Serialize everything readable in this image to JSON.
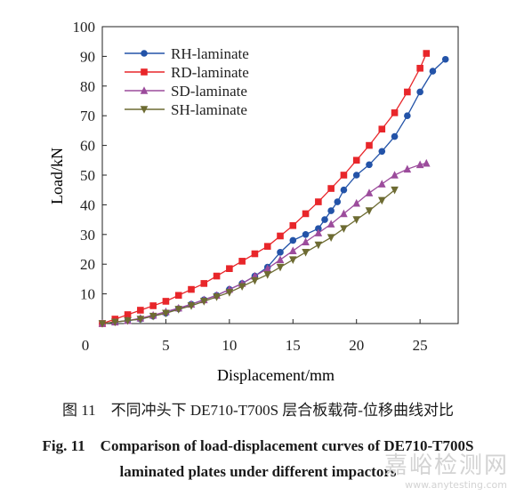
{
  "chart_data": {
    "type": "line",
    "xlabel": "Displacement/mm",
    "ylabel": "Load/kN",
    "xlim": [
      0,
      28
    ],
    "ylim": [
      0,
      100
    ],
    "x_ticks": [
      "5",
      "10",
      "15",
      "20",
      "25"
    ],
    "y_ticks": [
      "10",
      "20",
      "30",
      "40",
      "50",
      "60",
      "70",
      "80",
      "90",
      "100"
    ],
    "origin_label": "0",
    "grid": false,
    "legend_position": "top-left",
    "series": [
      {
        "name": "RH-laminate",
        "color": "#2353a8",
        "marker": "circle",
        "x": [
          0,
          1,
          2,
          3,
          4,
          5,
          6,
          7,
          8,
          9,
          10,
          11,
          12,
          13,
          14,
          15,
          16,
          17,
          17.5,
          18,
          18.5,
          19,
          20,
          21,
          22,
          23,
          24,
          25,
          26,
          27
        ],
        "y": [
          0,
          0.5,
          1,
          1.5,
          2.5,
          3.5,
          5,
          6.5,
          8,
          9.5,
          11.5,
          13.5,
          16,
          19,
          24,
          28,
          30,
          32,
          35,
          38,
          41,
          45,
          50,
          53.5,
          58,
          63,
          70,
          78,
          85,
          89
        ]
      },
      {
        "name": "RD-laminate",
        "color": "#e8262a",
        "marker": "square",
        "x": [
          0,
          1,
          2,
          3,
          4,
          5,
          6,
          7,
          8,
          9,
          10,
          11,
          12,
          13,
          14,
          15,
          16,
          17,
          18,
          19,
          20,
          21,
          22,
          23,
          24,
          25,
          25.5
        ],
        "y": [
          0,
          1.5,
          3,
          4.5,
          6,
          7.5,
          9.5,
          11.5,
          13.5,
          16,
          18.5,
          21,
          23.5,
          26,
          29.5,
          33,
          37,
          41,
          45.5,
          50,
          55,
          60,
          65.5,
          71,
          78,
          86,
          91
        ]
      },
      {
        "name": "SD-laminate",
        "color": "#9c4c9c",
        "marker": "triangle",
        "x": [
          0,
          1,
          2,
          3,
          4,
          5,
          6,
          7,
          8,
          9,
          10,
          11,
          12,
          13,
          14,
          15,
          16,
          17,
          18,
          19,
          20,
          21,
          22,
          23,
          24,
          25,
          25.5
        ],
        "y": [
          0,
          0.5,
          1,
          1.8,
          2.8,
          4,
          5.2,
          6.5,
          8,
          9.5,
          11.5,
          13.5,
          16,
          18.5,
          21.5,
          24.5,
          27.5,
          30.5,
          33.5,
          37,
          40.5,
          44,
          47,
          50,
          52,
          53.5,
          54
        ]
      },
      {
        "name": "SH-laminate",
        "color": "#6d6b32",
        "marker": "triangle-down",
        "x": [
          0,
          1,
          2,
          3,
          4,
          5,
          6,
          7,
          8,
          9,
          10,
          11,
          12,
          13,
          14,
          15,
          16,
          17,
          18,
          19,
          20,
          21,
          22,
          23
        ],
        "y": [
          0,
          0.5,
          1,
          1.5,
          2.5,
          3.5,
          4.8,
          6,
          7.5,
          9,
          10.5,
          12.5,
          14.5,
          16.5,
          19,
          21.5,
          24,
          26.5,
          29,
          32,
          35,
          38,
          41.5,
          45
        ]
      }
    ]
  },
  "caption": {
    "cn": "图 11　不同冲头下 DE710-T700S 层合板载荷-位移曲线对比",
    "en_line1": "Fig. 11　Comparison of load-displacement curves of DE710-T700S",
    "en_line2": "laminated plates under different impactors"
  },
  "watermark": {
    "text": "嘉峪检测网",
    "url": "www.anytesting.com"
  }
}
